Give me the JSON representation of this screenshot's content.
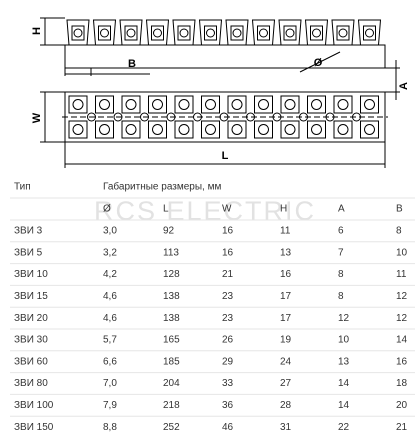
{
  "drawing": {
    "h_label": "H",
    "b_label": "B",
    "diameter_label": "Ø",
    "a_label": "A",
    "w_label": "W",
    "l_label": "L"
  },
  "watermark": "RCS ELECTRIC",
  "table": {
    "type_header": "Тип",
    "group_header": "Габаритные размеры, мм",
    "columns": [
      "Ø",
      "L",
      "W",
      "H",
      "A",
      "B"
    ],
    "rows": [
      [
        "ЗВИ 3",
        "3,0",
        "92",
        "16",
        "11",
        "6",
        "8"
      ],
      [
        "ЗВИ 5",
        "3,2",
        "113",
        "16",
        "13",
        "7",
        "10"
      ],
      [
        "ЗВИ 10",
        "4,2",
        "128",
        "21",
        "16",
        "8",
        "11"
      ],
      [
        "ЗВИ 15",
        "4,6",
        "138",
        "23",
        "17",
        "8",
        "12"
      ],
      [
        "ЗВИ 20",
        "4,6",
        "138",
        "23",
        "17",
        "12",
        "12"
      ],
      [
        "ЗВИ 30",
        "5,7",
        "165",
        "26",
        "19",
        "10",
        "14"
      ],
      [
        "ЗВИ 60",
        "6,6",
        "185",
        "29",
        "24",
        "13",
        "16"
      ],
      [
        "ЗВИ 80",
        "7,0",
        "204",
        "33",
        "27",
        "14",
        "18"
      ],
      [
        "ЗВИ 100",
        "7,9",
        "218",
        "36",
        "28",
        "14",
        "20"
      ],
      [
        "ЗВИ 150",
        "8,8",
        "252",
        "46",
        "31",
        "22",
        "21"
      ]
    ]
  }
}
